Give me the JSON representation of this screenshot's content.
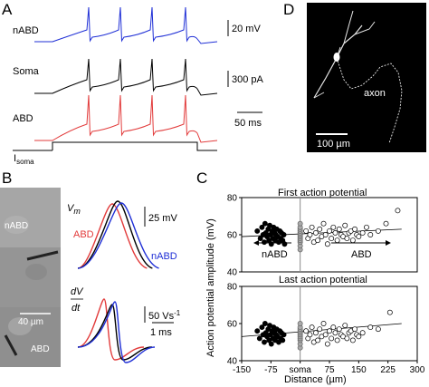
{
  "panel_a": {
    "letter": "A",
    "labels": [
      "nABD",
      "Soma",
      "ABD"
    ],
    "isoma_label": "I",
    "isoma_sub": "soma",
    "scale_voltage": "20 mV",
    "scale_current": "300 pA",
    "scale_time": "50 ms",
    "colors": {
      "nabd": "#1f2fd6",
      "soma": "#000000",
      "abd": "#e23b3b"
    }
  },
  "panel_b": {
    "letter": "B",
    "image_labels": {
      "nabd": "nABD",
      "abd": "ABD",
      "scale": "40 µm"
    },
    "vm_label": "V",
    "vm_sub": "m",
    "dvdt_top": "dV",
    "dvdt_bottom": "dt",
    "trace_labels": {
      "abd": "ABD",
      "nabd": "nABD"
    },
    "scale_vm": "25 mV",
    "scale_dvdt": "50 Vs",
    "scale_dvdt_exp": "-1",
    "scale_time": "1 ms"
  },
  "panel_c": {
    "letter": "C",
    "top_title": "First action potential",
    "bottom_title": "Last action potential",
    "ylabel": "Action potential amplitude (mV)",
    "xlabel": "Distance (µm)",
    "x_ticks": [
      "-150",
      "-75",
      "soma",
      "75",
      "150",
      "225",
      "300"
    ],
    "y_ticks_top": [
      "40",
      "60",
      "80"
    ],
    "y_ticks_bottom": [
      "40",
      "60",
      "80"
    ],
    "arrow_left_label": "nABD",
    "arrow_right_label": "ABD"
  },
  "panel_d": {
    "letter": "D",
    "axon_label": "axon",
    "scale_label": "100 µm"
  },
  "chart_data": [
    {
      "type": "scatter",
      "title": "First action potential",
      "xlabel": "Distance (µm)",
      "ylabel": "Action potential amplitude (mV)",
      "xlim": [
        -150,
        300
      ],
      "ylim": [
        40,
        80
      ],
      "series": [
        {
          "name": "nABD",
          "filled": true,
          "x": [
            -110,
            -102,
            -98,
            -95,
            -92,
            -90,
            -88,
            -85,
            -82,
            -80,
            -78,
            -76,
            -74,
            -72,
            -70,
            -68,
            -66,
            -64,
            -62,
            -60,
            -58,
            -55,
            -52,
            -50,
            -48,
            -45,
            -42,
            -40
          ],
          "y": [
            62,
            58,
            64,
            60,
            56,
            66,
            61,
            59,
            63,
            57,
            65,
            60,
            55,
            62,
            58,
            64,
            61,
            57,
            60,
            63,
            59,
            56,
            62,
            58,
            61,
            57,
            60,
            55
          ]
        },
        {
          "name": "soma",
          "filled": "grey",
          "x": [
            0,
            0,
            0,
            0,
            0,
            0,
            0,
            0,
            0,
            0,
            0,
            0
          ],
          "y": [
            52,
            54,
            56,
            57,
            58,
            59,
            60,
            61,
            62,
            63,
            64,
            66
          ]
        },
        {
          "name": "ABD",
          "filled": false,
          "x": [
            15,
            20,
            25,
            30,
            35,
            40,
            45,
            50,
            55,
            60,
            65,
            70,
            75,
            80,
            85,
            90,
            95,
            100,
            105,
            110,
            115,
            120,
            125,
            130,
            135,
            140,
            145,
            150,
            160,
            170,
            180,
            200,
            220,
            250
          ],
          "y": [
            62,
            58,
            60,
            64,
            56,
            61,
            57,
            63,
            59,
            66,
            60,
            55,
            62,
            58,
            64,
            61,
            57,
            63,
            60,
            59,
            65,
            58,
            61,
            62,
            57,
            63,
            60,
            59,
            61,
            64,
            60,
            62,
            66,
            73
          ]
        }
      ],
      "fit_line": {
        "x": [
          -150,
          260
        ],
        "y": [
          59,
          63
        ]
      }
    },
    {
      "type": "scatter",
      "title": "Last action potential",
      "xlabel": "Distance (µm)",
      "ylabel": "Action potential amplitude (mV)",
      "xlim": [
        -150,
        300
      ],
      "ylim": [
        40,
        80
      ],
      "series": [
        {
          "name": "nABD",
          "filled": true,
          "x": [
            -110,
            -104,
            -98,
            -95,
            -92,
            -90,
            -88,
            -85,
            -82,
            -80,
            -78,
            -76,
            -74,
            -72,
            -70,
            -68,
            -66,
            -64,
            -62,
            -60,
            -58,
            -55,
            -52,
            -50,
            -48,
            -45,
            -42
          ],
          "y": [
            56,
            52,
            58,
            54,
            50,
            60,
            55,
            53,
            57,
            51,
            59,
            54,
            49,
            56,
            52,
            58,
            55,
            51,
            54,
            57,
            53,
            50,
            56,
            52,
            55,
            51,
            54
          ]
        },
        {
          "name": "soma",
          "filled": "grey",
          "x": [
            0,
            0,
            0,
            0,
            0,
            0,
            0,
            0,
            0,
            0,
            0
          ],
          "y": [
            47,
            49,
            51,
            52,
            53,
            54,
            55,
            56,
            57,
            58,
            60
          ]
        },
        {
          "name": "ABD",
          "filled": false,
          "x": [
            15,
            20,
            25,
            30,
            35,
            40,
            45,
            50,
            55,
            60,
            65,
            70,
            75,
            80,
            85,
            90,
            95,
            100,
            105,
            110,
            115,
            120,
            125,
            130,
            135,
            140,
            145,
            150,
            160,
            180,
            200,
            230
          ],
          "y": [
            56,
            52,
            54,
            58,
            50,
            55,
            51,
            57,
            53,
            60,
            54,
            49,
            56,
            52,
            58,
            55,
            51,
            57,
            54,
            53,
            59,
            52,
            55,
            56,
            51,
            57,
            54,
            53,
            55,
            58,
            57,
            66
          ]
        }
      ],
      "fit_line": {
        "x": [
          -150,
          260
        ],
        "y": [
          53,
          60
        ]
      }
    }
  ]
}
